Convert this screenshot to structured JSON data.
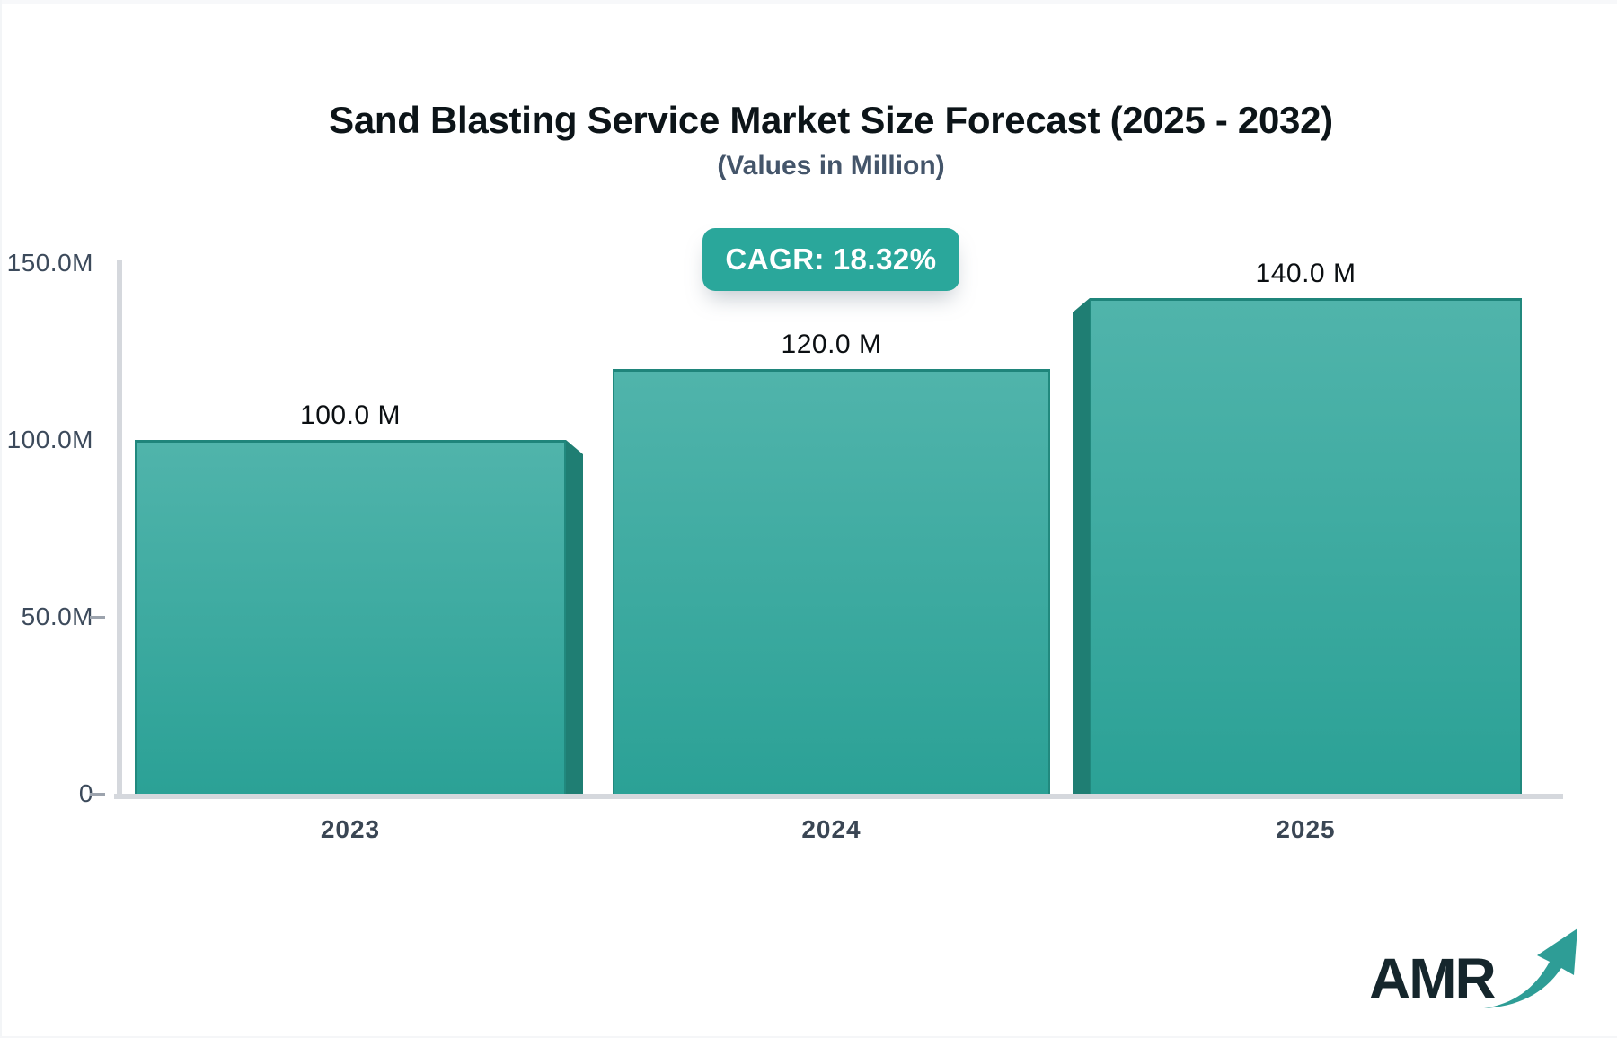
{
  "header": {
    "title": "Sand Blasting Service Market Size Forecast (2025 - 2032)",
    "subtitle": "(Values in Million)",
    "cagr_label": "CAGR: 18.32%"
  },
  "chart_data": {
    "type": "bar",
    "title": "Sand Blasting Service Market Size Forecast (2025 - 2032)",
    "subtitle": "(Values in Million)",
    "unit": "Million",
    "categories": [
      "2023",
      "2024",
      "2025"
    ],
    "values": [
      100.0,
      120.0,
      140.0
    ],
    "value_labels": [
      "100.0 M",
      "120.0 M",
      "140.0 M"
    ],
    "cagr_annotation": "CAGR: 18.32%",
    "ylim": [
      0,
      150
    ],
    "y_ticks": [
      {
        "label": "150.0M",
        "value": 150,
        "tick_mark": false
      },
      {
        "label": "100.0M",
        "value": 100,
        "tick_mark": false
      },
      {
        "label": "50.0M",
        "value": 50,
        "tick_mark": true
      },
      {
        "label": "0",
        "value": 0,
        "tick_mark": true
      }
    ],
    "grid": false,
    "legend": false,
    "bar_style": {
      "face_top_color": "#50B4AB",
      "face_bottom_color": "#2BA196",
      "edge_color": "#21897E",
      "top_edge_color": "#1F857B",
      "side_3d_color": "#1F7E73"
    }
  },
  "colors": {
    "badge_bg": "#2AA79B",
    "badge_text": "#FFFFFF",
    "title_text": "#0C1418",
    "subtitle_text": "#44556A",
    "axis_line": "#D5D8DD",
    "tick_label": "#3C4A5B",
    "value_label": "#0B0F12",
    "logo_text": "#15262C",
    "logo_arrow": "#2E9D96"
  },
  "logo": {
    "text": "AMR",
    "arrow_icon": "growth-arrow-icon"
  }
}
